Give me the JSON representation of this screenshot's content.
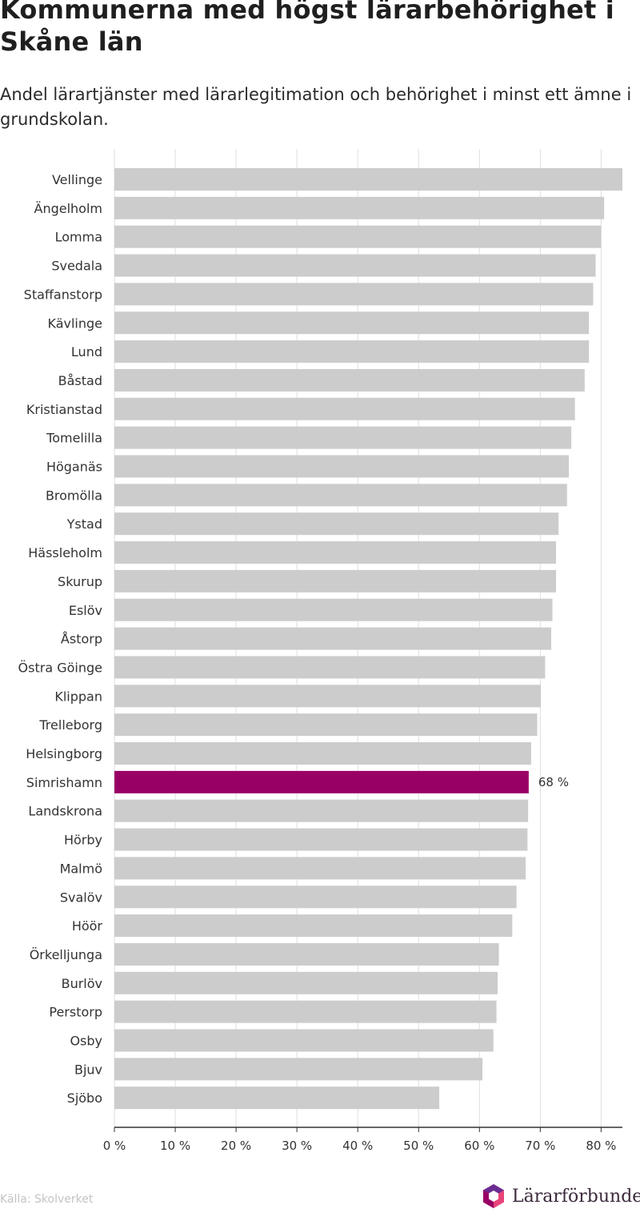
{
  "chart_data": {
    "type": "bar",
    "orientation": "horizontal",
    "title": "Kommunerna med högst lärarbehörighet i Skåne län",
    "subtitle": "Andel lärartjänster med lärarlegitimation och behörighet i minst ett ämne i grundskolan.",
    "xlabel": "",
    "ylabel": "",
    "xlim": [
      0,
      83.5
    ],
    "x_ticks": [
      0,
      10,
      20,
      30,
      40,
      50,
      60,
      70,
      80
    ],
    "x_tick_labels": [
      "0 %",
      "10 %",
      "20 %",
      "30 %",
      "40 %",
      "50 %",
      "60 %",
      "70 %",
      "80 %"
    ],
    "grid": "vertical",
    "categories": [
      "Vellinge",
      "Ängelholm",
      "Lomma",
      "Svedala",
      "Staffanstorp",
      "Kävlinge",
      "Lund",
      "Båstad",
      "Kristianstad",
      "Tomelilla",
      "Höganäs",
      "Bromölla",
      "Ystad",
      "Hässleholm",
      "Skurup",
      "Eslöv",
      "Åstorp",
      "Östra Göinge",
      "Klippan",
      "Trelleborg",
      "Helsingborg",
      "Simrishamn",
      "Landskrona",
      "Hörby",
      "Malmö",
      "Svalöv",
      "Höör",
      "Örkelljunga",
      "Burlöv",
      "Perstorp",
      "Osby",
      "Bjuv",
      "Sjöbo"
    ],
    "values": [
      83.5,
      80.5,
      80.0,
      79.1,
      78.7,
      78.0,
      78.0,
      77.3,
      75.7,
      75.1,
      74.7,
      74.4,
      73.0,
      72.6,
      72.6,
      72.0,
      71.8,
      70.8,
      70.1,
      69.5,
      68.5,
      68.1,
      68.0,
      67.9,
      67.6,
      66.1,
      65.4,
      63.2,
      63.0,
      62.8,
      62.3,
      60.5,
      53.4
    ],
    "highlight": {
      "category": "Simrishamn",
      "label": "68 %"
    },
    "colors": {
      "bar": "#cccccc",
      "highlight": "#990066",
      "grid": "#dedede",
      "axis": "#333333"
    }
  },
  "source": "Källa: Skolverket",
  "brand": {
    "name": "Lärarförbundet",
    "icon": "lararforbundet-logo-icon",
    "colors": [
      "#e8447a",
      "#990066",
      "#6a2c91"
    ]
  }
}
